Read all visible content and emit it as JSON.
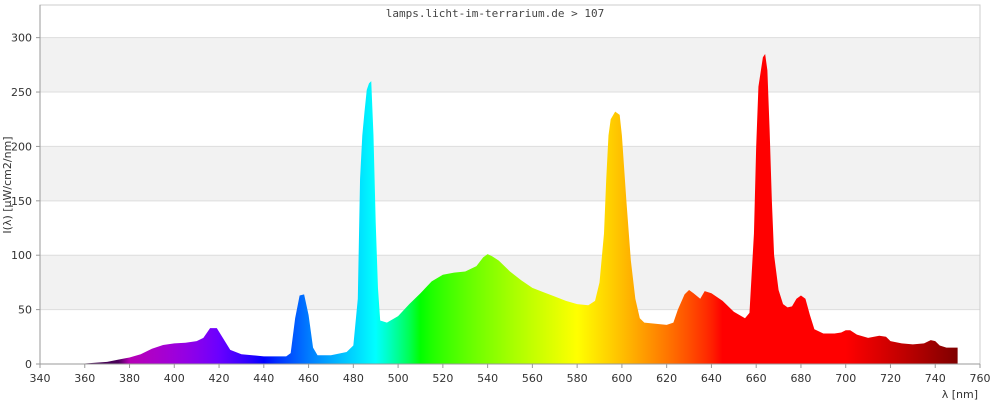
{
  "chart_data": {
    "type": "area",
    "title": "lamps.licht-im-terrarium.de > 107",
    "xlabel": "λ [nm]",
    "ylabel": "I(λ)  [μW/cm2/nm]",
    "xlim": [
      340,
      760
    ],
    "ylim": [
      0,
      330
    ],
    "x_ticks": [
      340,
      360,
      380,
      400,
      420,
      440,
      460,
      480,
      500,
      520,
      540,
      560,
      580,
      600,
      620,
      640,
      660,
      680,
      700,
      720,
      740,
      760
    ],
    "y_ticks": [
      0,
      50,
      100,
      150,
      200,
      250,
      300
    ],
    "grid": "horizontal alternating bands",
    "fill": "visible spectrum color gradient by wavelength",
    "series": [
      {
        "points": [
          [
            350,
            0
          ],
          [
            360,
            0.5
          ],
          [
            370,
            2
          ],
          [
            375,
            4
          ],
          [
            380,
            6
          ],
          [
            385,
            9
          ],
          [
            390,
            14
          ],
          [
            395,
            17.5
          ],
          [
            400,
            19
          ],
          [
            405,
            19.5
          ],
          [
            410,
            21
          ],
          [
            413,
            24
          ],
          [
            416,
            33
          ],
          [
            419,
            33
          ],
          [
            422,
            23
          ],
          [
            425,
            13
          ],
          [
            430,
            9
          ],
          [
            440,
            7
          ],
          [
            450,
            7
          ],
          [
            452,
            10
          ],
          [
            454,
            42
          ],
          [
            456,
            63
          ],
          [
            458,
            64
          ],
          [
            460,
            45
          ],
          [
            462,
            15
          ],
          [
            464,
            8
          ],
          [
            470,
            8
          ],
          [
            477,
            11
          ],
          [
            480,
            17
          ],
          [
            482,
            60
          ],
          [
            483,
            170
          ],
          [
            484,
            210
          ],
          [
            485,
            232
          ],
          [
            486,
            252
          ],
          [
            487,
            258
          ],
          [
            488,
            260
          ],
          [
            489,
            210
          ],
          [
            490,
            130
          ],
          [
            491,
            70
          ],
          [
            492,
            40
          ],
          [
            495,
            38
          ],
          [
            500,
            44
          ],
          [
            505,
            55
          ],
          [
            510,
            65
          ],
          [
            515,
            76
          ],
          [
            520,
            82
          ],
          [
            525,
            84
          ],
          [
            530,
            85
          ],
          [
            535,
            90
          ],
          [
            538,
            98
          ],
          [
            540,
            101
          ],
          [
            542,
            99
          ],
          [
            545,
            95
          ],
          [
            550,
            85
          ],
          [
            555,
            77
          ],
          [
            560,
            70
          ],
          [
            565,
            66
          ],
          [
            570,
            62
          ],
          [
            575,
            58
          ],
          [
            580,
            55
          ],
          [
            585,
            54
          ],
          [
            588,
            58
          ],
          [
            590,
            75
          ],
          [
            592,
            120
          ],
          [
            593,
            170
          ],
          [
            594,
            210
          ],
          [
            595,
            225
          ],
          [
            597,
            232
          ],
          [
            599,
            229
          ],
          [
            600,
            210
          ],
          [
            602,
            150
          ],
          [
            604,
            95
          ],
          [
            606,
            60
          ],
          [
            608,
            42
          ],
          [
            610,
            38
          ],
          [
            615,
            37
          ],
          [
            620,
            36
          ],
          [
            623,
            38
          ],
          [
            625,
            50
          ],
          [
            628,
            64
          ],
          [
            630,
            68
          ],
          [
            632,
            65
          ],
          [
            635,
            60
          ],
          [
            637,
            67
          ],
          [
            640,
            65
          ],
          [
            645,
            58
          ],
          [
            650,
            48
          ],
          [
            655,
            42
          ],
          [
            657,
            47
          ],
          [
            659,
            120
          ],
          [
            660,
            200
          ],
          [
            661,
            255
          ],
          [
            663,
            282
          ],
          [
            664,
            285
          ],
          [
            665,
            270
          ],
          [
            666,
            215
          ],
          [
            667,
            150
          ],
          [
            668,
            100
          ],
          [
            670,
            68
          ],
          [
            672,
            55
          ],
          [
            674,
            52
          ],
          [
            676,
            53
          ],
          [
            678,
            60
          ],
          [
            680,
            63
          ],
          [
            682,
            60
          ],
          [
            684,
            45
          ],
          [
            686,
            32
          ],
          [
            690,
            28
          ],
          [
            695,
            28
          ],
          [
            698,
            29
          ],
          [
            700,
            31
          ],
          [
            702,
            31
          ],
          [
            705,
            27
          ],
          [
            710,
            24
          ],
          [
            715,
            26
          ],
          [
            718,
            25
          ],
          [
            720,
            21
          ],
          [
            725,
            19
          ],
          [
            730,
            18
          ],
          [
            735,
            19
          ],
          [
            738,
            22
          ],
          [
            740,
            21
          ],
          [
            742,
            17
          ],
          [
            745,
            15
          ],
          [
            750,
            15
          ]
        ]
      }
    ]
  }
}
